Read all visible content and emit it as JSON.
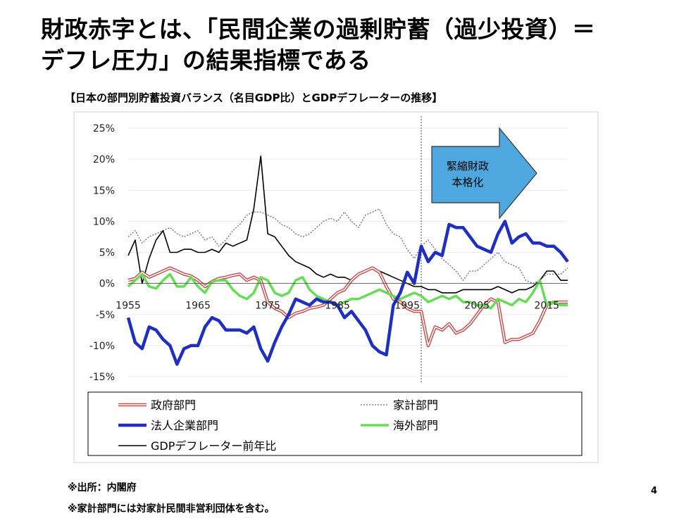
{
  "slide": {
    "title_line1": "財政赤字とは、「民間企業の過剰貯蓄（過少投資）＝",
    "title_line2": "デフレ圧力」の結果指標である",
    "page_number": "4"
  },
  "chart_data": {
    "type": "line",
    "title": "【日本の部門別貯蓄投資バランス（名目GDP比）とGDPデフレーターの推移】",
    "ylim": [
      -15,
      25
    ],
    "xlim": [
      1955,
      2018
    ],
    "y_ticks": [
      "25%",
      "20%",
      "15%",
      "10%",
      "5%",
      "0%",
      "-5%",
      "-10%",
      "-15%"
    ],
    "y_tick_values": [
      25,
      20,
      15,
      10,
      5,
      0,
      -5,
      -10,
      -15
    ],
    "x_ticks": [
      "1955",
      "1965",
      "1975",
      "1985",
      "1995",
      "2005",
      "2015"
    ],
    "x_tick_values": [
      1955,
      1965,
      1975,
      1985,
      1995,
      2005,
      2015
    ],
    "marker_year": 1997,
    "annotation_arrow": {
      "line1": "緊縮財政",
      "line2": "本格化",
      "color": "#4ea8df"
    },
    "series": [
      {
        "name": "政府部門",
        "key": "gov",
        "color": "#c0504d",
        "style": "double",
        "x": [
          1955,
          1956,
          1957,
          1958,
          1959,
          1960,
          1961,
          1962,
          1963,
          1964,
          1965,
          1966,
          1967,
          1968,
          1969,
          1970,
          1971,
          1972,
          1973,
          1974,
          1975,
          1976,
          1977,
          1978,
          1979,
          1980,
          1981,
          1982,
          1983,
          1984,
          1985,
          1986,
          1987,
          1988,
          1989,
          1990,
          1991,
          1992,
          1993,
          1994,
          1995,
          1996,
          1997,
          1998,
          1999,
          2000,
          2001,
          2002,
          2003,
          2004,
          2005,
          2006,
          2007,
          2008,
          2009,
          2010,
          2011,
          2012,
          2013,
          2014,
          2015,
          2016,
          2017,
          2018
        ],
        "values": [
          0.5,
          0.8,
          1.8,
          1.0,
          1.5,
          2.0,
          2.5,
          2.0,
          1.5,
          1.2,
          0.5,
          -0.5,
          0.3,
          0.8,
          1.0,
          1.3,
          1.5,
          0.5,
          1.0,
          0.5,
          -3.0,
          -4.0,
          -4.5,
          -5.5,
          -4.8,
          -4.5,
          -4.0,
          -3.8,
          -3.5,
          -2.5,
          -1.5,
          -1.0,
          0.5,
          1.5,
          2.0,
          2.5,
          1.8,
          -0.5,
          -2.5,
          -3.0,
          -4.0,
          -4.5,
          -4.5,
          -10.0,
          -7.0,
          -7.5,
          -6.5,
          -8.0,
          -7.5,
          -6.5,
          -5.0,
          -3.5,
          -2.5,
          -3.0,
          -9.5,
          -9.0,
          -9.0,
          -8.5,
          -8.0,
          -6.0,
          -3.5,
          -3.0,
          -3.0,
          -3.0
        ]
      },
      {
        "name": "家計部門",
        "key": "hh",
        "color": "#7060a0",
        "style": "dotted",
        "x": [
          1955,
          1956,
          1957,
          1958,
          1959,
          1960,
          1961,
          1962,
          1963,
          1964,
          1965,
          1966,
          1967,
          1968,
          1969,
          1970,
          1971,
          1972,
          1973,
          1974,
          1975,
          1976,
          1977,
          1978,
          1979,
          1980,
          1981,
          1982,
          1983,
          1984,
          1985,
          1986,
          1987,
          1988,
          1989,
          1990,
          1991,
          1992,
          1993,
          1994,
          1995,
          1996,
          1997,
          1998,
          1999,
          2000,
          2001,
          2002,
          2003,
          2004,
          2005,
          2006,
          2007,
          2008,
          2009,
          2010,
          2011,
          2012,
          2013,
          2014,
          2015,
          2016,
          2017,
          2018
        ],
        "values": [
          7.5,
          8.5,
          6.5,
          7.5,
          8.0,
          8.5,
          9.0,
          8.0,
          7.5,
          8.0,
          8.5,
          7.0,
          7.5,
          6.0,
          7.0,
          8.5,
          9.5,
          11.0,
          11.5,
          11.5,
          11.0,
          10.5,
          9.5,
          9.0,
          8.0,
          7.5,
          8.0,
          9.0,
          10.0,
          10.5,
          10.0,
          11.5,
          10.0,
          9.0,
          11.0,
          11.5,
          12.0,
          9.5,
          8.0,
          7.5,
          5.5,
          4.0,
          6.0,
          7.0,
          5.5,
          4.0,
          3.0,
          2.0,
          0.5,
          2.0,
          2.0,
          3.0,
          4.0,
          5.0,
          3.5,
          3.0,
          2.5,
          0.5,
          0.0,
          0.5,
          1.5,
          1.5,
          1.5,
          2.5
        ]
      },
      {
        "name": "法人企業部門",
        "key": "corp",
        "color": "#1f2fbf",
        "style": "thick",
        "x": [
          1955,
          1956,
          1957,
          1958,
          1959,
          1960,
          1961,
          1962,
          1963,
          1964,
          1965,
          1966,
          1967,
          1968,
          1969,
          1970,
          1971,
          1972,
          1973,
          1974,
          1975,
          1976,
          1977,
          1978,
          1979,
          1980,
          1981,
          1982,
          1983,
          1984,
          1985,
          1986,
          1987,
          1988,
          1989,
          1990,
          1991,
          1992,
          1993,
          1994,
          1995,
          1996,
          1997,
          1998,
          1999,
          2000,
          2001,
          2002,
          2003,
          2004,
          2005,
          2006,
          2007,
          2008,
          2009,
          2010,
          2011,
          2012,
          2013,
          2014,
          2015,
          2016,
          2017,
          2018
        ],
        "values": [
          -5.5,
          -9.5,
          -10.5,
          -7.0,
          -7.5,
          -9.0,
          -10.0,
          -13.0,
          -10.5,
          -10.0,
          -10.0,
          -7.0,
          -5.5,
          -6.0,
          -7.5,
          -7.5,
          -7.5,
          -8.0,
          -7.0,
          -10.5,
          -12.5,
          -9.5,
          -7.0,
          -5.0,
          -2.5,
          -3.0,
          -3.5,
          -2.5,
          -3.0,
          -3.0,
          -3.5,
          -5.5,
          -4.5,
          -6.0,
          -7.5,
          -10.0,
          -11.0,
          -11.5,
          -3.5,
          -1.5,
          1.8,
          0.0,
          6.0,
          3.5,
          5.0,
          4.5,
          9.5,
          9.0,
          9.0,
          7.5,
          6.0,
          5.5,
          5.0,
          8.0,
          10.0,
          6.5,
          7.5,
          8.0,
          6.5,
          6.5,
          6.0,
          6.0,
          5.0,
          3.5
        ]
      },
      {
        "name": "海外部門",
        "key": "fx",
        "color": "#66dd55",
        "style": "thick",
        "x": [
          1955,
          1956,
          1957,
          1958,
          1959,
          1960,
          1961,
          1962,
          1963,
          1964,
          1965,
          1966,
          1967,
          1968,
          1969,
          1970,
          1971,
          1972,
          1973,
          1974,
          1975,
          1976,
          1977,
          1978,
          1979,
          1980,
          1981,
          1982,
          1983,
          1984,
          1985,
          1986,
          1987,
          1988,
          1989,
          1990,
          1991,
          1992,
          1993,
          1994,
          1995,
          1996,
          1997,
          1998,
          1999,
          2000,
          2001,
          2002,
          2003,
          2004,
          2005,
          2006,
          2007,
          2008,
          2009,
          2010,
          2011,
          2012,
          2013,
          2014,
          2015,
          2016,
          2017,
          2018
        ],
        "values": [
          -0.5,
          0.5,
          1.5,
          -0.5,
          -0.8,
          0.5,
          1.5,
          -0.5,
          -0.5,
          1.0,
          -0.5,
          -1.5,
          0.3,
          0.5,
          0.5,
          -1.0,
          -2.0,
          -2.5,
          -1.5,
          1.0,
          0.5,
          -1.5,
          -2.0,
          -1.5,
          0.5,
          1.0,
          -1.0,
          -2.0,
          -2.5,
          -3.0,
          -3.5,
          -3.0,
          -2.5,
          -2.5,
          -2.0,
          -1.5,
          -1.0,
          -1.5,
          -2.0,
          -2.5,
          -2.0,
          -1.5,
          -2.0,
          -3.0,
          -2.5,
          -2.0,
          -2.5,
          -2.0,
          -3.0,
          -3.0,
          -3.5,
          -3.5,
          -4.0,
          -2.5,
          -3.0,
          -3.5,
          -2.5,
          -3.0,
          -1.5,
          0.5,
          -3.5,
          -3.0,
          -3.5,
          -3.5
        ]
      },
      {
        "name": "GDPデフレーター前年比",
        "key": "gdp",
        "color": "#000000",
        "style": "thin",
        "x": [
          1955,
          1956,
          1957,
          1958,
          1959,
          1960,
          1961,
          1962,
          1963,
          1964,
          1965,
          1966,
          1967,
          1968,
          1969,
          1970,
          1971,
          1972,
          1973,
          1974,
          1975,
          1976,
          1977,
          1978,
          1979,
          1980,
          1981,
          1982,
          1983,
          1984,
          1985,
          1986,
          1987,
          1988,
          1989,
          1990,
          1991,
          1992,
          1993,
          1994,
          1995,
          1996,
          1997,
          1998,
          1999,
          2000,
          2001,
          2002,
          2003,
          2004,
          2005,
          2006,
          2007,
          2008,
          2009,
          2010,
          2011,
          2012,
          2013,
          2014,
          2015,
          2016,
          2017,
          2018
        ],
        "values": [
          4.5,
          7.0,
          0.0,
          4.0,
          7.0,
          8.5,
          5.0,
          5.0,
          5.5,
          5.5,
          5.0,
          5.0,
          5.5,
          5.0,
          6.5,
          6.0,
          6.5,
          7.0,
          12.0,
          20.5,
          8.0,
          7.5,
          6.0,
          4.5,
          3.5,
          3.0,
          2.5,
          1.5,
          1.0,
          1.5,
          1.0,
          1.0,
          0.5,
          1.5,
          2.0,
          2.5,
          2.0,
          1.5,
          1.0,
          0.5,
          0.0,
          -0.5,
          -0.5,
          -1.0,
          -1.0,
          -1.5,
          -1.5,
          -1.5,
          -1.0,
          -1.0,
          -1.0,
          -1.0,
          -1.0,
          -0.5,
          -1.0,
          -1.5,
          -1.0,
          -1.0,
          -0.5,
          0.5,
          2.0,
          2.0,
          0.5,
          0.5
        ]
      }
    ]
  },
  "notes": {
    "source": "※出所：内閣府",
    "household": "※家計部門には対家計民間非営利団体を含む。"
  }
}
